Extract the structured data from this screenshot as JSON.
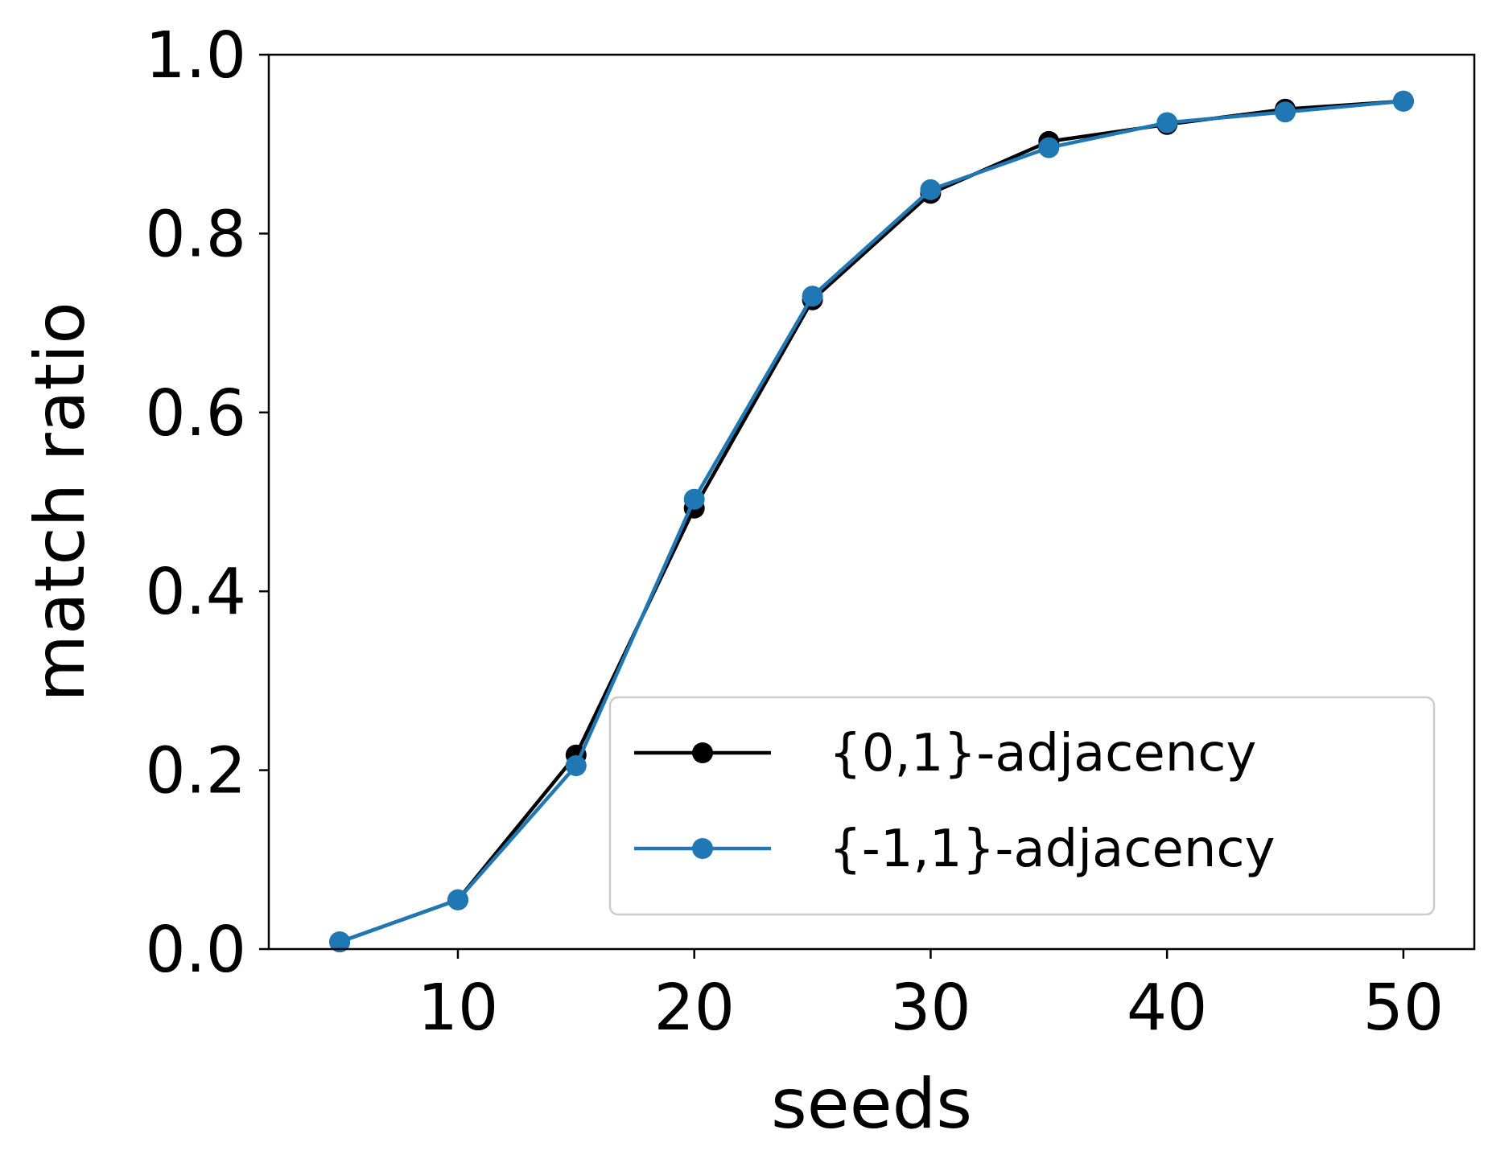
{
  "chart_data": {
    "type": "line",
    "xlabel": "seeds",
    "ylabel": "match ratio",
    "xlim": [
      2.0,
      53.0
    ],
    "ylim": [
      0.0,
      1.0
    ],
    "xticks": [
      10,
      20,
      30,
      40,
      50
    ],
    "yticks": [
      0.0,
      0.2,
      0.4,
      0.6,
      0.8,
      1.0
    ],
    "xtick_labels": [
      "10",
      "20",
      "30",
      "40",
      "50"
    ],
    "ytick_labels": [
      "0.0",
      "0.2",
      "0.4",
      "0.6",
      "0.8",
      "1.0"
    ],
    "grid": false,
    "legend_position": "lower-right",
    "x": [
      5,
      10,
      15,
      20,
      25,
      30,
      35,
      40,
      45,
      50
    ],
    "series": [
      {
        "name": "{0,1}-adjacency",
        "color": "#000000",
        "marker": "circle",
        "values": [
          0.008,
          0.055,
          0.217,
          0.493,
          0.726,
          0.845,
          0.903,
          0.922,
          0.939,
          0.948
        ]
      },
      {
        "name": "{-1,1}-adjacency",
        "color": "#1f77b4",
        "marker": "circle",
        "values": [
          0.008,
          0.055,
          0.205,
          0.503,
          0.73,
          0.849,
          0.896,
          0.924,
          0.936,
          0.948
        ]
      }
    ]
  }
}
